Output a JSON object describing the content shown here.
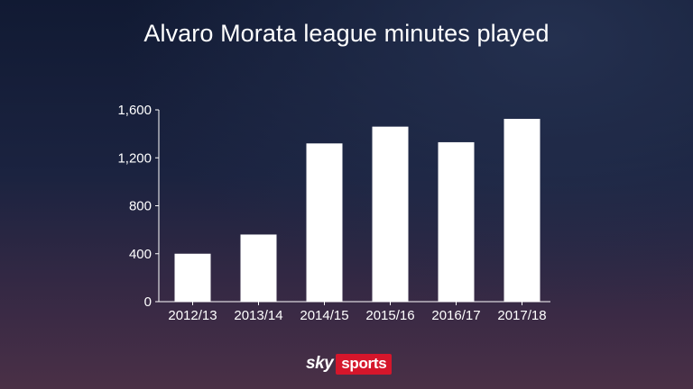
{
  "chart_data": {
    "type": "bar",
    "title": "Alvaro Morata league minutes played",
    "categories": [
      "2012/13",
      "2013/14",
      "2014/15",
      "2015/16",
      "2016/17",
      "2017/18"
    ],
    "values": [
      400,
      560,
      1320,
      1460,
      1330,
      1525
    ],
    "ylim": [
      0,
      1600
    ],
    "yticks": [
      0,
      400,
      800,
      1200,
      1600
    ],
    "ytick_labels": [
      "0",
      "400",
      "800",
      "1,200",
      "1,600"
    ],
    "grid": false,
    "bar_color": "#ffffff"
  },
  "branding": {
    "logo_sky": "sky",
    "logo_sports": "sports",
    "logo_color": "#d5162b"
  }
}
